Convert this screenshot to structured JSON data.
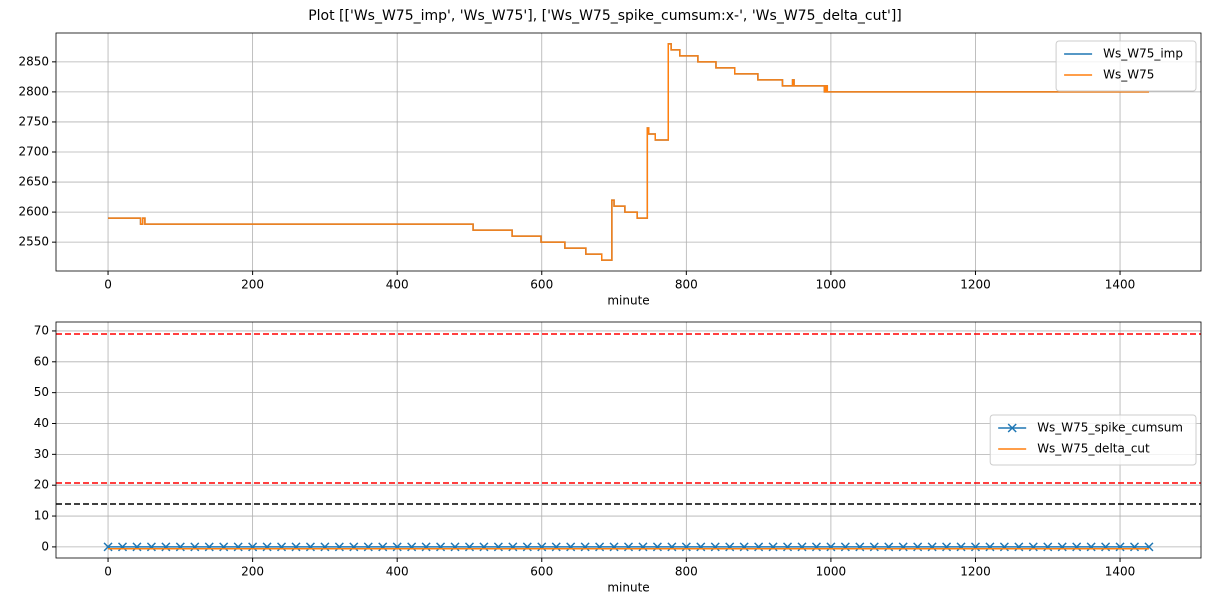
{
  "title": "Plot [['Ws_W75_imp', 'Ws_W75'], ['Ws_W75_spike_cumsum:x-', 'Ws_W75_delta_cut']]",
  "chart_data": [
    {
      "type": "line",
      "xlabel": "minute",
      "xlim": [
        -72,
        1512
      ],
      "ylim": [
        2502,
        2898
      ],
      "xticks": [
        0,
        200,
        400,
        600,
        800,
        1000,
        1200,
        1400
      ],
      "yticks": [
        2550,
        2600,
        2650,
        2700,
        2750,
        2800,
        2850
      ],
      "grid": true,
      "legend": "upper right",
      "x": [
        0,
        45,
        45,
        48,
        48,
        51,
        51,
        505,
        505,
        559,
        559,
        599,
        599,
        632,
        632,
        661,
        661,
        683,
        683,
        697,
        697,
        700,
        700,
        715,
        715,
        732,
        732,
        746,
        746,
        748,
        748,
        757,
        757,
        775,
        775,
        779,
        779,
        791,
        791,
        816,
        816,
        841,
        841,
        867,
        867,
        899,
        899,
        933,
        933,
        947,
        947,
        949,
        949,
        991,
        991,
        993,
        993,
        995,
        995,
        1440
      ],
      "series": [
        {
          "name": "Ws_W75_imp",
          "color": "#1f77b4",
          "values": [
            2590,
            2590,
            2580,
            2580,
            2590,
            2590,
            2580,
            2580,
            2570,
            2570,
            2560,
            2560,
            2550,
            2550,
            2540,
            2540,
            2530,
            2530,
            2520,
            2520,
            2620,
            2620,
            2610,
            2610,
            2600,
            2600,
            2590,
            2590,
            2740,
            2740,
            2730,
            2730,
            2720,
            2720,
            2880,
            2880,
            2870,
            2870,
            2860,
            2860,
            2850,
            2850,
            2840,
            2840,
            2830,
            2830,
            2820,
            2820,
            2810,
            2810,
            2820,
            2820,
            2810,
            2810,
            2800,
            2800,
            2810,
            2810,
            2800,
            2800
          ]
        },
        {
          "name": "Ws_W75",
          "color": "#ff7f0e",
          "values": [
            2590,
            2590,
            2580,
            2580,
            2590,
            2590,
            2580,
            2580,
            2570,
            2570,
            2560,
            2560,
            2550,
            2550,
            2540,
            2540,
            2530,
            2530,
            2520,
            2520,
            2620,
            2620,
            2610,
            2610,
            2600,
            2600,
            2590,
            2590,
            2740,
            2740,
            2730,
            2730,
            2720,
            2720,
            2880,
            2880,
            2870,
            2870,
            2860,
            2860,
            2850,
            2850,
            2840,
            2840,
            2830,
            2830,
            2820,
            2820,
            2810,
            2810,
            2820,
            2820,
            2810,
            2810,
            2800,
            2800,
            2810,
            2810,
            2800,
            2800
          ]
        }
      ]
    },
    {
      "type": "line",
      "xlabel": "minute",
      "xlim": [
        -72,
        1512
      ],
      "ylim": [
        -3.6,
        72.9
      ],
      "xticks": [
        0,
        200,
        400,
        600,
        800,
        1000,
        1200,
        1400
      ],
      "yticks": [
        0,
        10,
        20,
        30,
        40,
        50,
        60,
        70
      ],
      "grid": true,
      "legend": "center right",
      "hlines": [
        {
          "value": 69,
          "color": "#ff0000"
        },
        {
          "value": 20.7,
          "color": "#ff0000"
        },
        {
          "value": 13.9,
          "color": "#000000"
        }
      ],
      "series": [
        {
          "name": "Ws_W75_spike_cumsum",
          "color": "#1f77b4",
          "marker": "x",
          "x": [
            0,
            20,
            40,
            60,
            80,
            100,
            120,
            140,
            160,
            180,
            200,
            220,
            240,
            260,
            280,
            300,
            320,
            340,
            360,
            380,
            400,
            420,
            440,
            460,
            480,
            500,
            520,
            540,
            560,
            580,
            600,
            620,
            640,
            660,
            680,
            700,
            720,
            740,
            760,
            780,
            800,
            820,
            840,
            860,
            880,
            900,
            920,
            940,
            960,
            980,
            1000,
            1020,
            1040,
            1060,
            1080,
            1100,
            1120,
            1140,
            1160,
            1180,
            1200,
            1220,
            1240,
            1260,
            1280,
            1300,
            1320,
            1340,
            1360,
            1380,
            1400,
            1420,
            1440
          ],
          "values": [
            0,
            0,
            0,
            0,
            0,
            0,
            0,
            0,
            0,
            0,
            0,
            0,
            0,
            0,
            0,
            0,
            0,
            0,
            0,
            0,
            0,
            0,
            0,
            0,
            0,
            0,
            0,
            0,
            0,
            0,
            0,
            0,
            0,
            0,
            0,
            0,
            0,
            0,
            0,
            0,
            0,
            0,
            0,
            0,
            0,
            0,
            0,
            0,
            0,
            0,
            0,
            0,
            0,
            0,
            0,
            0,
            0,
            0,
            0,
            0,
            0,
            0,
            0,
            0,
            0,
            0,
            0,
            0,
            0,
            0,
            0,
            0,
            0
          ]
        },
        {
          "name": "Ws_W75_delta_cut",
          "color": "#ff7f0e",
          "x": [
            0,
            1440
          ],
          "values": [
            -0.6,
            -0.6
          ]
        }
      ]
    }
  ]
}
